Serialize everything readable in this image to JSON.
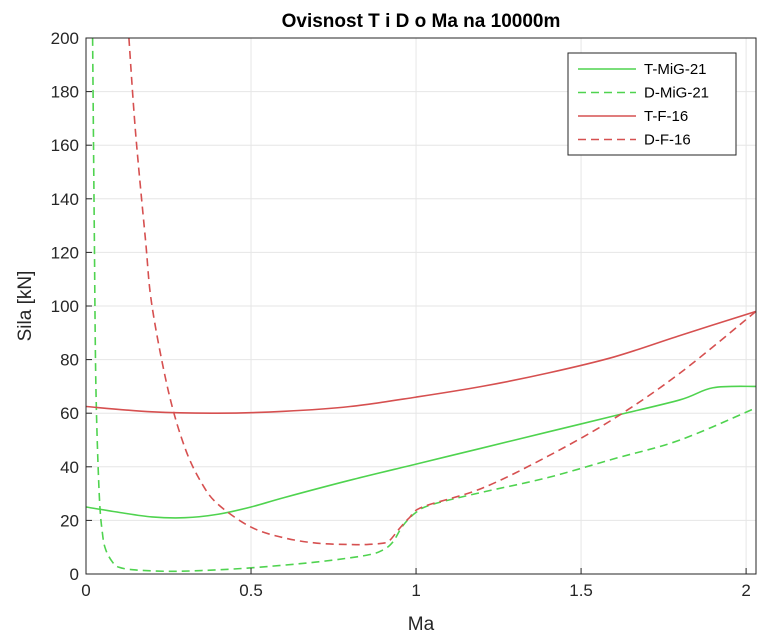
{
  "chart_data": {
    "type": "line",
    "title": "Ovisnost T i D o Ma na 10000m",
    "xlabel": "Ma",
    "ylabel": "Sila [kN]",
    "xlim": [
      0,
      2.03
    ],
    "ylim": [
      0,
      200
    ],
    "xticks": [
      0,
      0.5,
      1,
      1.5,
      2
    ],
    "xtick_labels": [
      "0",
      "0.5",
      "1",
      "1.5",
      "2"
    ],
    "yticks": [
      0,
      20,
      40,
      60,
      80,
      100,
      120,
      140,
      160,
      180,
      200
    ],
    "ytick_labels": [
      "0",
      "20",
      "40",
      "60",
      "80",
      "100",
      "120",
      "140",
      "160",
      "180",
      "200"
    ],
    "grid": true,
    "legend_position": "top-right",
    "series": [
      {
        "name": "T-MiG-21",
        "color": "#4fd34f",
        "dash": "solid",
        "points": [
          [
            0,
            25
          ],
          [
            0.1,
            23
          ],
          [
            0.2,
            21.3
          ],
          [
            0.3,
            21
          ],
          [
            0.4,
            22.3
          ],
          [
            0.5,
            25
          ],
          [
            0.6,
            28.5
          ],
          [
            0.8,
            35
          ],
          [
            1.0,
            41
          ],
          [
            1.2,
            47
          ],
          [
            1.4,
            53
          ],
          [
            1.6,
            59
          ],
          [
            1.8,
            65
          ],
          [
            1.9,
            69.5
          ],
          [
            2.03,
            70
          ]
        ]
      },
      {
        "name": "D-MiG-21",
        "color": "#4fd34f",
        "dash": "dashed",
        "points": [
          [
            0.02,
            200
          ],
          [
            0.025,
            130
          ],
          [
            0.03,
            70
          ],
          [
            0.04,
            30
          ],
          [
            0.05,
            15
          ],
          [
            0.06,
            9
          ],
          [
            0.08,
            4.5
          ],
          [
            0.1,
            2.5
          ],
          [
            0.15,
            1.5
          ],
          [
            0.25,
            1
          ],
          [
            0.35,
            1.3
          ],
          [
            0.5,
            2.3
          ],
          [
            0.7,
            4.5
          ],
          [
            0.85,
            7
          ],
          [
            0.9,
            9
          ],
          [
            0.93,
            12
          ],
          [
            0.96,
            18
          ],
          [
            1.0,
            23
          ],
          [
            1.05,
            26
          ],
          [
            1.2,
            30.5
          ],
          [
            1.4,
            36
          ],
          [
            1.6,
            43
          ],
          [
            1.8,
            50
          ],
          [
            2.03,
            62
          ]
        ]
      },
      {
        "name": "T-F-16",
        "color": "#d65050",
        "dash": "solid",
        "points": [
          [
            0,
            62.5
          ],
          [
            0.2,
            60.5
          ],
          [
            0.4,
            60
          ],
          [
            0.6,
            60.7
          ],
          [
            0.8,
            62.5
          ],
          [
            1.0,
            66
          ],
          [
            1.2,
            70
          ],
          [
            1.4,
            75
          ],
          [
            1.6,
            81
          ],
          [
            1.8,
            89
          ],
          [
            2.03,
            98
          ]
        ]
      },
      {
        "name": "D-F-16",
        "color": "#d65050",
        "dash": "dashed",
        "points": [
          [
            0.13,
            200
          ],
          [
            0.15,
            165
          ],
          [
            0.18,
            125
          ],
          [
            0.2,
            100
          ],
          [
            0.25,
            68
          ],
          [
            0.3,
            47
          ],
          [
            0.35,
            34
          ],
          [
            0.4,
            26
          ],
          [
            0.5,
            17.5
          ],
          [
            0.6,
            13.5
          ],
          [
            0.7,
            11.5
          ],
          [
            0.8,
            11
          ],
          [
            0.85,
            11
          ],
          [
            0.9,
            11.5
          ],
          [
            0.92,
            12.5
          ],
          [
            0.95,
            17
          ],
          [
            0.98,
            21
          ],
          [
            1.02,
            25
          ],
          [
            1.2,
            32
          ],
          [
            1.4,
            44
          ],
          [
            1.6,
            58
          ],
          [
            1.8,
            75
          ],
          [
            2.03,
            98
          ]
        ]
      }
    ]
  }
}
